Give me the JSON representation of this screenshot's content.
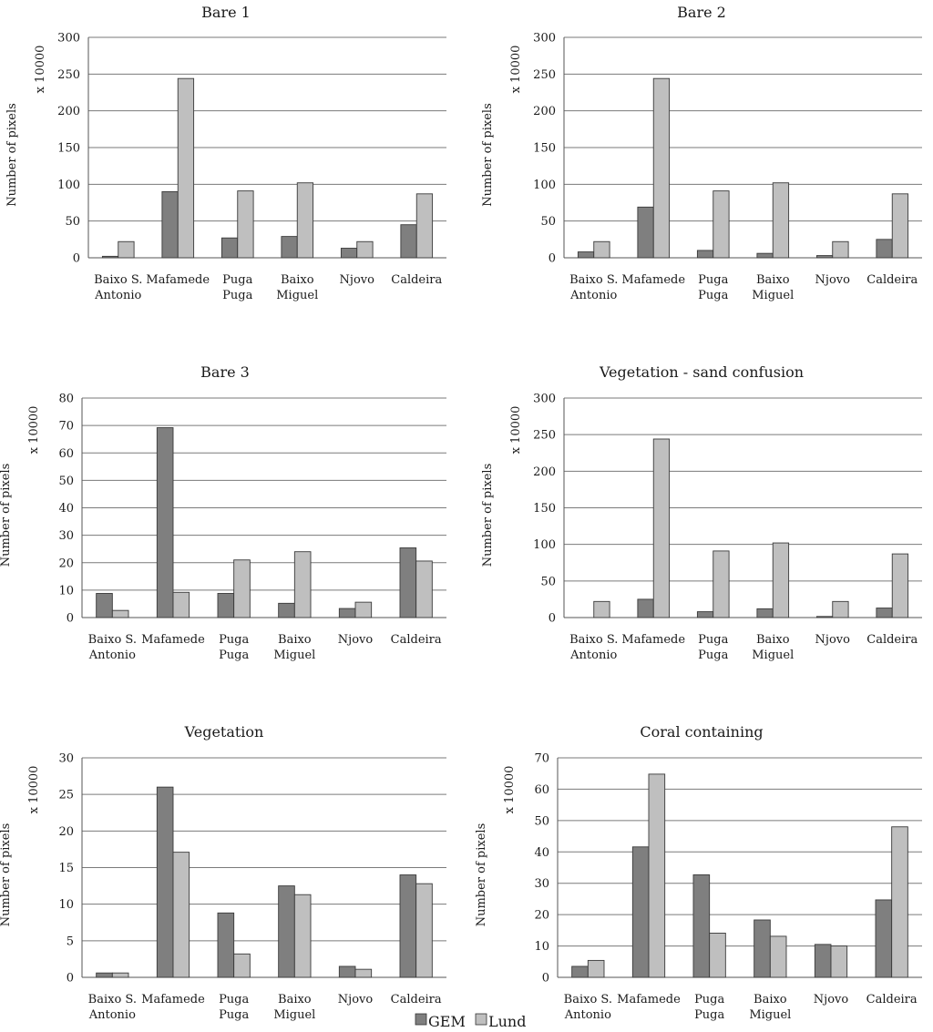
{
  "legend": {
    "entries": [
      {
        "label": "GEM",
        "color": "#7f7f7f"
      },
      {
        "label": "Lund",
        "color": "#bfbfbf"
      }
    ]
  },
  "chart_data": [
    {
      "type": "bar",
      "title": "Bare 1",
      "ylabel": "Number of pixels",
      "multiplier": "x 10000",
      "ylim": [
        0,
        300
      ],
      "ystep": 50,
      "categories": [
        [
          "Baixo S.",
          "Antonio"
        ],
        [
          "Mafamede"
        ],
        [
          "Puga",
          "Puga"
        ],
        [
          "Baixo",
          "Miguel"
        ],
        [
          "Njovo"
        ],
        [
          "Caldeira"
        ]
      ],
      "series": [
        {
          "name": "GEM",
          "values": [
            2,
            90,
            27,
            29,
            13,
            45
          ]
        },
        {
          "name": "Lund",
          "values": [
            22,
            244,
            91,
            102,
            22,
            87
          ]
        }
      ]
    },
    {
      "type": "bar",
      "title": "Bare 2",
      "ylabel": "Number of pixels",
      "multiplier": "x 10000",
      "ylim": [
        0,
        300
      ],
      "ystep": 50,
      "categories": [
        [
          "Baixo S.",
          "Antonio"
        ],
        [
          "Mafamede"
        ],
        [
          "Puga",
          "Puga"
        ],
        [
          "Baixo",
          "Miguel"
        ],
        [
          "Njovo"
        ],
        [
          "Caldeira"
        ]
      ],
      "series": [
        {
          "name": "GEM",
          "values": [
            8,
            69,
            10,
            6,
            3,
            25
          ]
        },
        {
          "name": "Lund",
          "values": [
            22,
            244,
            91,
            102,
            22,
            87
          ]
        }
      ]
    },
    {
      "type": "bar",
      "title": "Bare 3",
      "ylabel": "Number of pixels",
      "multiplier": "x 10000",
      "ylim": [
        0,
        80
      ],
      "ystep": 10,
      "categories": [
        [
          "Baixo S.",
          "Antonio"
        ],
        [
          "Mafamede"
        ],
        [
          "Puga",
          "Puga"
        ],
        [
          "Baixo",
          "Miguel"
        ],
        [
          "Njovo"
        ],
        [
          "Caldeira"
        ]
      ],
      "series": [
        {
          "name": "GEM",
          "values": [
            8.8,
            69.2,
            8.8,
            5.2,
            3.3,
            25.4
          ]
        },
        {
          "name": "Lund",
          "values": [
            2.6,
            9.2,
            21,
            24,
            5.6,
            20.6
          ]
        }
      ]
    },
    {
      "type": "bar",
      "title": "Vegetation - sand confusion",
      "ylabel": "Number of pixels",
      "multiplier": "x 10000",
      "ylim": [
        0,
        300
      ],
      "ystep": 50,
      "categories": [
        [
          "Baixo S.",
          "Antonio"
        ],
        [
          "Mafamede"
        ],
        [
          "Puga",
          "Puga"
        ],
        [
          "Baixo",
          "Miguel"
        ],
        [
          "Njovo"
        ],
        [
          "Caldeira"
        ]
      ],
      "series": [
        {
          "name": "GEM",
          "values": [
            0,
            25,
            8,
            12,
            1.5,
            13
          ]
        },
        {
          "name": "Lund",
          "values": [
            22,
            244,
            91,
            102,
            22,
            87
          ]
        }
      ]
    },
    {
      "type": "bar",
      "title": "Vegetation",
      "ylabel": "Number of pixels",
      "multiplier": "x 10000",
      "ylim": [
        0,
        30
      ],
      "ystep": 5,
      "categories": [
        [
          "Baixo S.",
          "Antonio"
        ],
        [
          "Mafamede"
        ],
        [
          "Puga",
          "Puga"
        ],
        [
          "Baixo",
          "Miguel"
        ],
        [
          "Njovo"
        ],
        [
          "Caldeira"
        ]
      ],
      "series": [
        {
          "name": "GEM",
          "values": [
            0.6,
            26,
            8.8,
            12.5,
            1.5,
            14
          ]
        },
        {
          "name": "Lund",
          "values": [
            0.6,
            17.1,
            3.2,
            11.3,
            1.1,
            12.8
          ]
        }
      ]
    },
    {
      "type": "bar",
      "title": "Coral containing",
      "ylabel": "Number of pixels",
      "multiplier": "x 10000",
      "ylim": [
        0,
        70
      ],
      "ystep": 10,
      "categories": [
        [
          "Baixo S.",
          "Antonio"
        ],
        [
          "Mafamede"
        ],
        [
          "Puga",
          "Puga"
        ],
        [
          "Baixo",
          "Miguel"
        ],
        [
          "Njovo"
        ],
        [
          "Caldeira"
        ]
      ],
      "series": [
        {
          "name": "GEM",
          "values": [
            3.5,
            41.6,
            32.7,
            18.3,
            10.5,
            24.7
          ]
        },
        {
          "name": "Lund",
          "values": [
            5.4,
            64.8,
            14.1,
            13.1,
            10,
            48
          ]
        }
      ]
    }
  ]
}
